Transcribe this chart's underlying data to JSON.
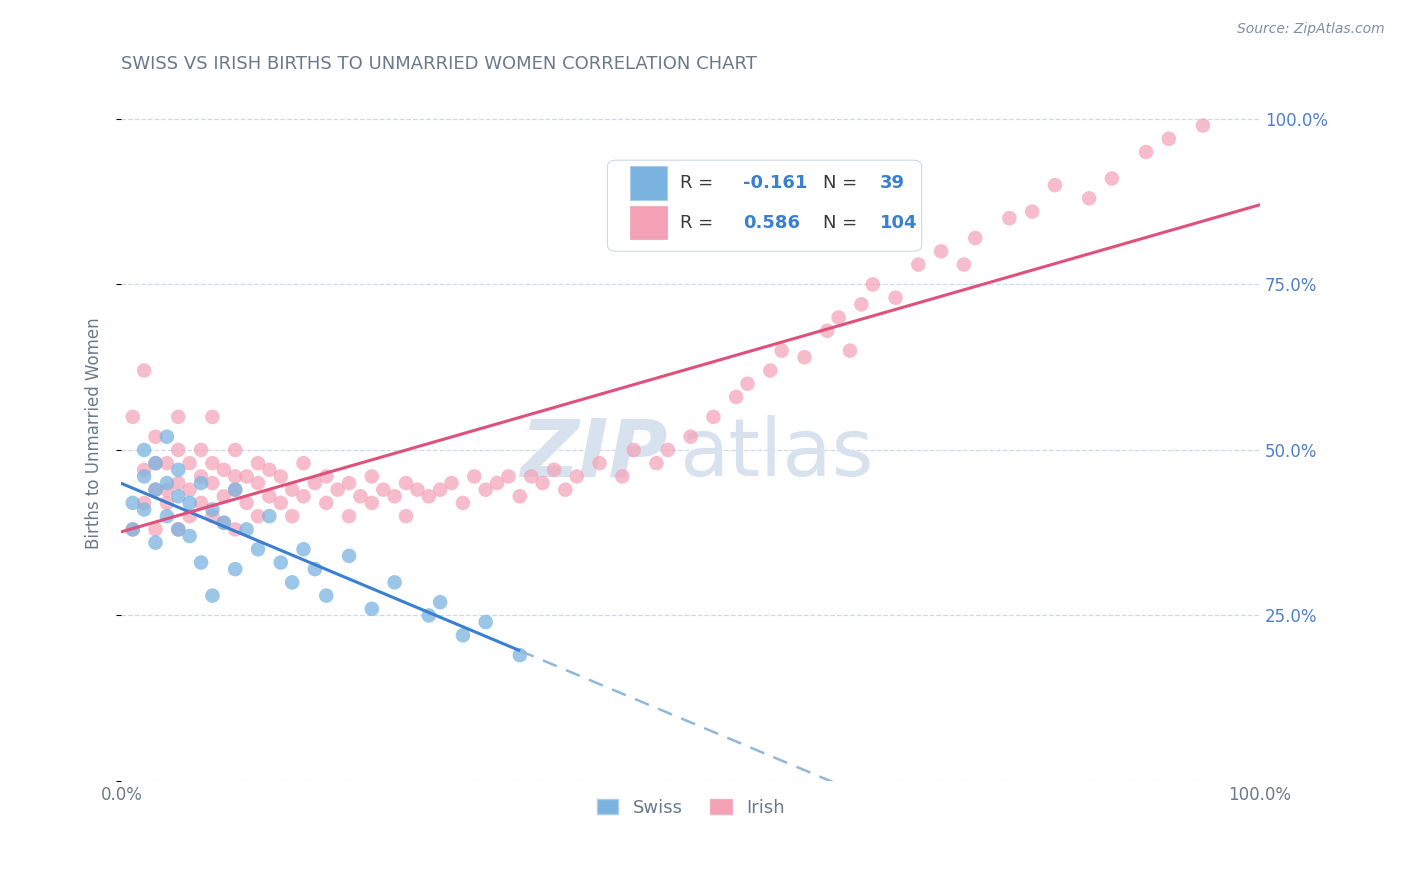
{
  "title": "SWISS VS IRISH BIRTHS TO UNMARRIED WOMEN CORRELATION CHART",
  "source_text": "Source: ZipAtlas.com",
  "ylabel": "Births to Unmarried Women",
  "swiss_R": -0.161,
  "swiss_N": 39,
  "irish_R": 0.586,
  "irish_N": 104,
  "swiss_color": "#7ab3e0",
  "irish_color": "#f4a0b5",
  "swiss_line_color": "#3a7fd0",
  "irish_line_color": "#e0507a",
  "dashed_line_color": "#90b8d8",
  "legend_swiss_label": "Swiss",
  "legend_irish_label": "Irish",
  "background_color": "#ffffff",
  "grid_color": "#c8d4e8",
  "title_color": "#6a7a8a",
  "right_tick_color": "#5080c8",
  "watermark_zip": "ZIP",
  "watermark_atlas": "atlas",
  "watermark_color": "#d8e2ef"
}
